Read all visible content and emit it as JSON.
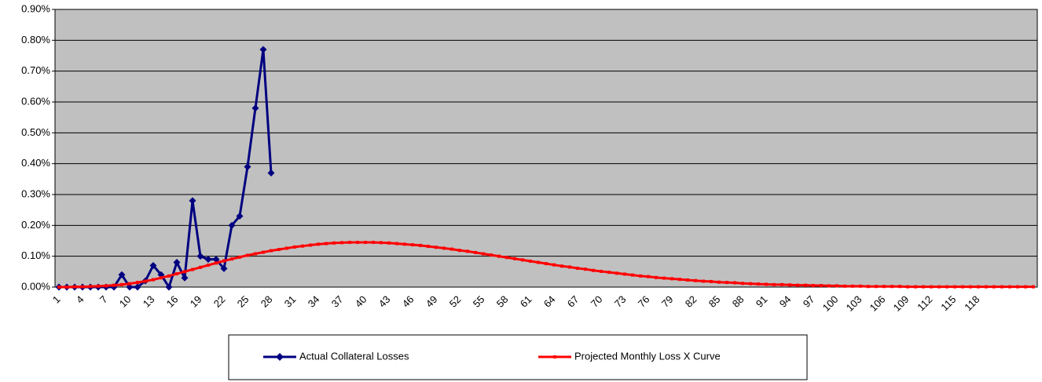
{
  "chart_data": {
    "type": "line",
    "categories": [
      1,
      null,
      null,
      4,
      null,
      null,
      7,
      null,
      null,
      10,
      null,
      null,
      13,
      null,
      null,
      16,
      null,
      null,
      19,
      null,
      null,
      22,
      null,
      null,
      25,
      null,
      null,
      28,
      null,
      null,
      31,
      null,
      null,
      34,
      null,
      null,
      37,
      null,
      null,
      40,
      null,
      null,
      43,
      null,
      null,
      46,
      null,
      null,
      49,
      null,
      null,
      52,
      null,
      null,
      55,
      null,
      null,
      58,
      null,
      null,
      61,
      null,
      null,
      64,
      null,
      null,
      67,
      null,
      null,
      70,
      null,
      null,
      73,
      null,
      null,
      76,
      null,
      null,
      79,
      null,
      null,
      82,
      null,
      null,
      85,
      null,
      null,
      88,
      null,
      null,
      91,
      null,
      null,
      94,
      null,
      null,
      97,
      null,
      null,
      100,
      null,
      null,
      103,
      null,
      null,
      106,
      null,
      null,
      109,
      null,
      null,
      112,
      null,
      null,
      115,
      null,
      null,
      118,
      null,
      null,
      null,
      null,
      null,
      null,
      null
    ],
    "series": [
      {
        "name": "Actual Collateral Losses",
        "color": "#000080",
        "marker": "diamond",
        "values": [
          0,
          0,
          0,
          0,
          0,
          0,
          0,
          0,
          0.04,
          0,
          0,
          0.02,
          0.07,
          0.04,
          0,
          0.08,
          0.03,
          0.28,
          0.1,
          0.09,
          0.09,
          0.06,
          0.2,
          0.23,
          0.39,
          0.58,
          0.77,
          0.37,
          null,
          null,
          null,
          null,
          null,
          null,
          null,
          null,
          null,
          null,
          null,
          null,
          null,
          null,
          null,
          null,
          null,
          null,
          null,
          null,
          null,
          null,
          null,
          null,
          null,
          null,
          null,
          null,
          null,
          null,
          null,
          null,
          null,
          null,
          null,
          null,
          null,
          null,
          null,
          null,
          null,
          null,
          null,
          null,
          null,
          null,
          null,
          null,
          null,
          null,
          null,
          null,
          null,
          null,
          null,
          null,
          null,
          null,
          null,
          null,
          null,
          null,
          null,
          null,
          null,
          null,
          null,
          null,
          null,
          null,
          null,
          null,
          null,
          null,
          null,
          null,
          null,
          null,
          null,
          null,
          null,
          null,
          null,
          null,
          null,
          null,
          null,
          null,
          null,
          null,
          null,
          null,
          null,
          null,
          null,
          null,
          null
        ]
      },
      {
        "name": "Projected Monthly Loss X Curve",
        "color": "#ff0000",
        "marker": "square",
        "values": [
          0,
          0,
          0.001,
          0.001,
          0.002,
          0.003,
          0.004,
          0.006,
          0.008,
          0.011,
          0.015,
          0.019,
          0.024,
          0.03,
          0.036,
          0.043,
          0.05,
          0.057,
          0.064,
          0.071,
          0.078,
          0.085,
          0.091,
          0.097,
          0.103,
          0.108,
          0.113,
          0.118,
          0.122,
          0.126,
          0.13,
          0.133,
          0.136,
          0.139,
          0.141,
          0.143,
          0.144,
          0.145,
          0.145,
          0.145,
          0.145,
          0.144,
          0.143,
          0.141,
          0.139,
          0.137,
          0.135,
          0.132,
          0.129,
          0.126,
          0.123,
          0.119,
          0.116,
          0.112,
          0.108,
          0.104,
          0.1,
          0.096,
          0.092,
          0.088,
          0.084,
          0.08,
          0.076,
          0.072,
          0.068,
          0.065,
          0.061,
          0.058,
          0.054,
          0.051,
          0.048,
          0.045,
          0.042,
          0.039,
          0.036,
          0.034,
          0.031,
          0.029,
          0.027,
          0.025,
          0.023,
          0.021,
          0.019,
          0.018,
          0.016,
          0.015,
          0.014,
          0.012,
          0.011,
          0.01,
          0.009,
          0.008,
          0.008,
          0.007,
          0.006,
          0.006,
          0.005,
          0.005,
          0.004,
          0.004,
          0.003,
          0.003,
          0.003,
          0.002,
          0.002,
          0.002,
          0.002,
          0.002,
          0.001,
          0.001,
          0.001,
          0.001,
          0.001,
          0.001,
          0.001,
          0.001,
          0.001,
          0.001,
          0.001,
          0.001,
          0.001,
          0.001,
          0.001,
          0.001,
          0.001
        ]
      }
    ],
    "ylim": [
      0,
      0.9
    ],
    "yticks": [
      {
        "value": 0,
        "label": "0.00%"
      },
      {
        "value": 0.1,
        "label": "0.10%"
      },
      {
        "value": 0.2,
        "label": "0.20%"
      },
      {
        "value": 0.3,
        "label": "0.30%"
      },
      {
        "value": 0.4,
        "label": "0.40%"
      },
      {
        "value": 0.5,
        "label": "0.50%"
      },
      {
        "value": 0.6,
        "label": "0.60%"
      },
      {
        "value": 0.7,
        "label": "0.70%"
      },
      {
        "value": 0.8,
        "label": "0.80%"
      },
      {
        "value": 0.9,
        "label": "0.90%"
      }
    ],
    "grid": true,
    "plot_background": "#c0c0c0",
    "legend": "bottom"
  }
}
